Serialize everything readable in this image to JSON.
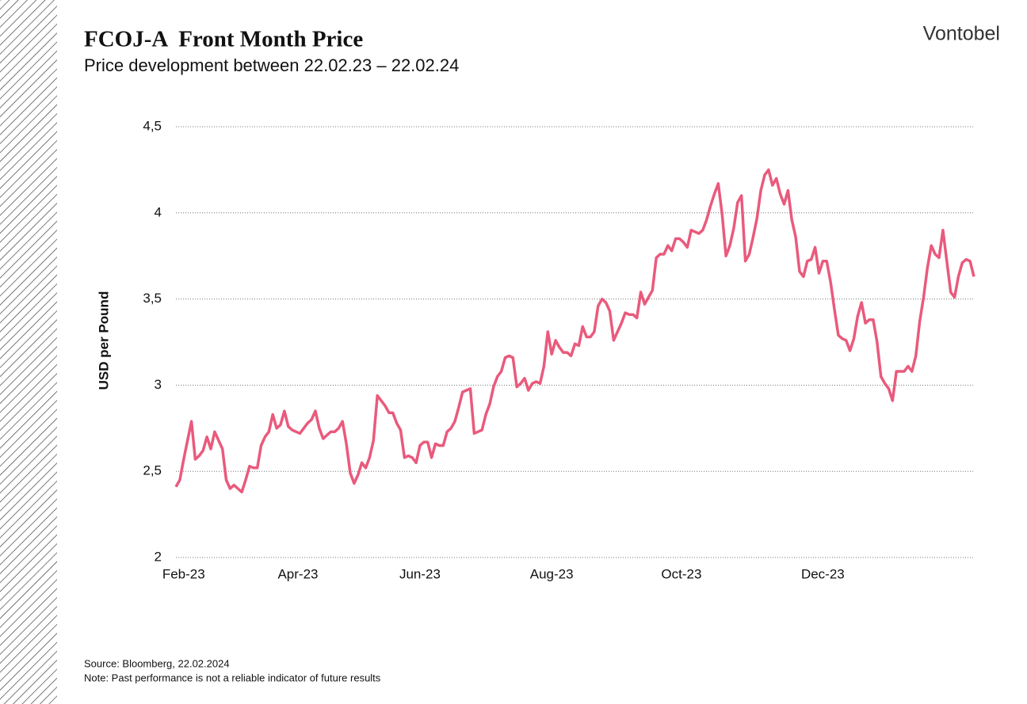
{
  "brand": "Vontobel",
  "footer": {
    "source": "Source: Bloomberg, 22.02.2024",
    "note": "Note: Past performance is not a reliable indicator of future results"
  },
  "chart_data": {
    "type": "line",
    "title": "FCOJ-A  Front Month Price",
    "subtitle": "Price development between 22.02.23 – 22.02.24",
    "y_label": "USD per Pound",
    "color": "#e95a7c",
    "grid": true,
    "ylim": [
      2,
      4.5
    ],
    "yticks": [
      2,
      {
        "value": 2.5,
        "label": "2,5"
      },
      3,
      {
        "value": 3.5,
        "label": "3,5"
      },
      4,
      {
        "value": 4.5,
        "label": "4,5"
      }
    ],
    "xticks": [
      "Feb-23",
      "Apr-23",
      "Jun-23",
      "Aug-23",
      "Oct-23",
      "Dec-23"
    ],
    "x": [
      "Feb-23",
      "Feb-23",
      "Feb-23",
      "Feb-23",
      "Feb-23",
      "Mar-23",
      "Mar-23",
      "Mar-23",
      "Mar-23",
      "Mar-23",
      "Mar-23",
      "Mar-23",
      "Mar-23",
      "Mar-23",
      "Mar-23",
      "Mar-23",
      "Mar-23",
      "Mar-23",
      "Mar-23",
      "Mar-23",
      "Mar-23",
      "Mar-23",
      "Mar-23",
      "Mar-23",
      "Apr-23",
      "Apr-23",
      "Apr-23",
      "Apr-23",
      "Apr-23",
      "Apr-23",
      "Apr-23",
      "Apr-23",
      "Apr-23",
      "Apr-23",
      "Apr-23",
      "Apr-23",
      "Apr-23",
      "Apr-23",
      "Apr-23",
      "Apr-23",
      "May-23",
      "May-23",
      "May-23",
      "May-23",
      "May-23",
      "May-23",
      "May-23",
      "May-23",
      "May-23",
      "May-23",
      "May-23",
      "May-23",
      "May-23",
      "May-23",
      "May-23",
      "May-23",
      "Jun-23",
      "Jun-23",
      "Jun-23",
      "Jun-23",
      "Jun-23",
      "Jun-23",
      "Jun-23",
      "Jun-23",
      "Jun-23",
      "Jun-23",
      "Jun-23",
      "Jun-23",
      "Jun-23",
      "Jun-23",
      "Jun-23",
      "Jul-23",
      "Jul-23",
      "Jul-23",
      "Jul-23",
      "Jul-23",
      "Jul-23",
      "Jul-23",
      "Jul-23",
      "Jul-23",
      "Jul-23",
      "Jul-23",
      "Jul-23",
      "Jul-23",
      "Jul-23",
      "Jul-23",
      "Jul-23",
      "Jul-23",
      "Aug-23",
      "Aug-23",
      "Aug-23",
      "Aug-23",
      "Aug-23",
      "Aug-23",
      "Aug-23",
      "Aug-23",
      "Aug-23",
      "Aug-23",
      "Aug-23",
      "Aug-23",
      "Aug-23",
      "Aug-23",
      "Aug-23",
      "Aug-23",
      "Aug-23",
      "Aug-23",
      "Aug-23",
      "Sep-23",
      "Sep-23",
      "Sep-23",
      "Sep-23",
      "Sep-23",
      "Sep-23",
      "Sep-23",
      "Sep-23",
      "Sep-23",
      "Sep-23",
      "Sep-23",
      "Sep-23",
      "Sep-23",
      "Sep-23",
      "Sep-23",
      "Oct-23",
      "Oct-23",
      "Oct-23",
      "Oct-23",
      "Oct-23",
      "Oct-23",
      "Oct-23",
      "Oct-23",
      "Oct-23",
      "Oct-23",
      "Oct-23",
      "Oct-23",
      "Oct-23",
      "Oct-23",
      "Oct-23",
      "Oct-23",
      "Oct-23",
      "Oct-23",
      "Nov-23",
      "Nov-23",
      "Nov-23",
      "Nov-23",
      "Nov-23",
      "Nov-23",
      "Nov-23",
      "Nov-23",
      "Nov-23",
      "Nov-23",
      "Nov-23",
      "Nov-23",
      "Nov-23",
      "Nov-23",
      "Nov-23",
      "Nov-23",
      "Nov-23",
      "Nov-23",
      "Nov-23",
      "Dec-23",
      "Dec-23",
      "Dec-23",
      "Dec-23",
      "Dec-23",
      "Dec-23",
      "Dec-23",
      "Dec-23",
      "Dec-23",
      "Dec-23",
      "Dec-23",
      "Dec-23",
      "Dec-23",
      "Dec-23",
      "Dec-23",
      "Dec-23",
      "Dec-23",
      "Jan-24",
      "Jan-24",
      "Jan-24",
      "Jan-24",
      "Jan-24",
      "Jan-24",
      "Jan-24",
      "Jan-24",
      "Jan-24",
      "Jan-24",
      "Jan-24",
      "Jan-24",
      "Jan-24",
      "Jan-24",
      "Jan-24",
      "Jan-24",
      "Jan-24",
      "Jan-24",
      "Feb-24",
      "Feb-24",
      "Feb-24",
      "Feb-24",
      "Feb-24",
      "Feb-24",
      "Feb-24",
      "Feb-24",
      "Feb-24",
      "Feb-24",
      "Feb-24",
      "Feb-24",
      "Feb-24"
    ],
    "values": [
      2.41,
      2.45,
      2.57,
      2.68,
      2.79,
      2.57,
      2.59,
      2.62,
      2.7,
      2.63,
      2.73,
      2.68,
      2.63,
      2.45,
      2.4,
      2.42,
      2.4,
      2.38,
      2.45,
      2.53,
      2.52,
      2.52,
      2.65,
      2.7,
      2.73,
      2.83,
      2.75,
      2.77,
      2.85,
      2.76,
      2.74,
      2.73,
      2.72,
      2.75,
      2.78,
      2.8,
      2.85,
      2.75,
      2.69,
      2.71,
      2.73,
      2.73,
      2.75,
      2.79,
      2.66,
      2.49,
      2.43,
      2.48,
      2.55,
      2.52,
      2.58,
      2.68,
      2.94,
      2.91,
      2.88,
      2.84,
      2.84,
      2.78,
      2.74,
      2.58,
      2.59,
      2.58,
      2.55,
      2.65,
      2.67,
      2.67,
      2.58,
      2.66,
      2.65,
      2.65,
      2.73,
      2.75,
      2.79,
      2.87,
      2.96,
      2.97,
      2.98,
      2.72,
      2.73,
      2.74,
      2.83,
      2.89,
      2.99,
      3.05,
      3.08,
      3.16,
      3.17,
      3.16,
      2.99,
      3.01,
      3.04,
      2.97,
      3.01,
      3.02,
      3.01,
      3.11,
      3.31,
      3.18,
      3.26,
      3.22,
      3.19,
      3.19,
      3.17,
      3.24,
      3.23,
      3.34,
      3.28,
      3.28,
      3.31,
      3.46,
      3.5,
      3.48,
      3.43,
      3.26,
      3.31,
      3.36,
      3.42,
      3.41,
      3.41,
      3.39,
      3.54,
      3.47,
      3.51,
      3.55,
      3.74,
      3.76,
      3.76,
      3.81,
      3.78,
      3.85,
      3.85,
      3.83,
      3.8,
      3.9,
      3.89,
      3.88,
      3.9,
      3.96,
      4.04,
      4.11,
      4.17,
      3.99,
      3.75,
      3.81,
      3.91,
      4.06,
      4.1,
      3.72,
      3.76,
      3.86,
      3.97,
      4.13,
      4.22,
      4.25,
      4.16,
      4.2,
      4.11,
      4.05,
      4.13,
      3.96,
      3.86,
      3.66,
      3.63,
      3.72,
      3.73,
      3.8,
      3.65,
      3.72,
      3.72,
      3.6,
      3.44,
      3.29,
      3.27,
      3.26,
      3.2,
      3.27,
      3.4,
      3.48,
      3.36,
      3.38,
      3.38,
      3.25,
      3.05,
      3.01,
      2.98,
      2.91,
      3.08,
      3.08,
      3.08,
      3.11,
      3.08,
      3.17,
      3.37,
      3.51,
      3.68,
      3.81,
      3.76,
      3.74,
      3.9,
      3.72,
      3.54,
      3.51,
      3.63,
      3.71,
      3.73,
      3.72,
      3.63
    ]
  }
}
